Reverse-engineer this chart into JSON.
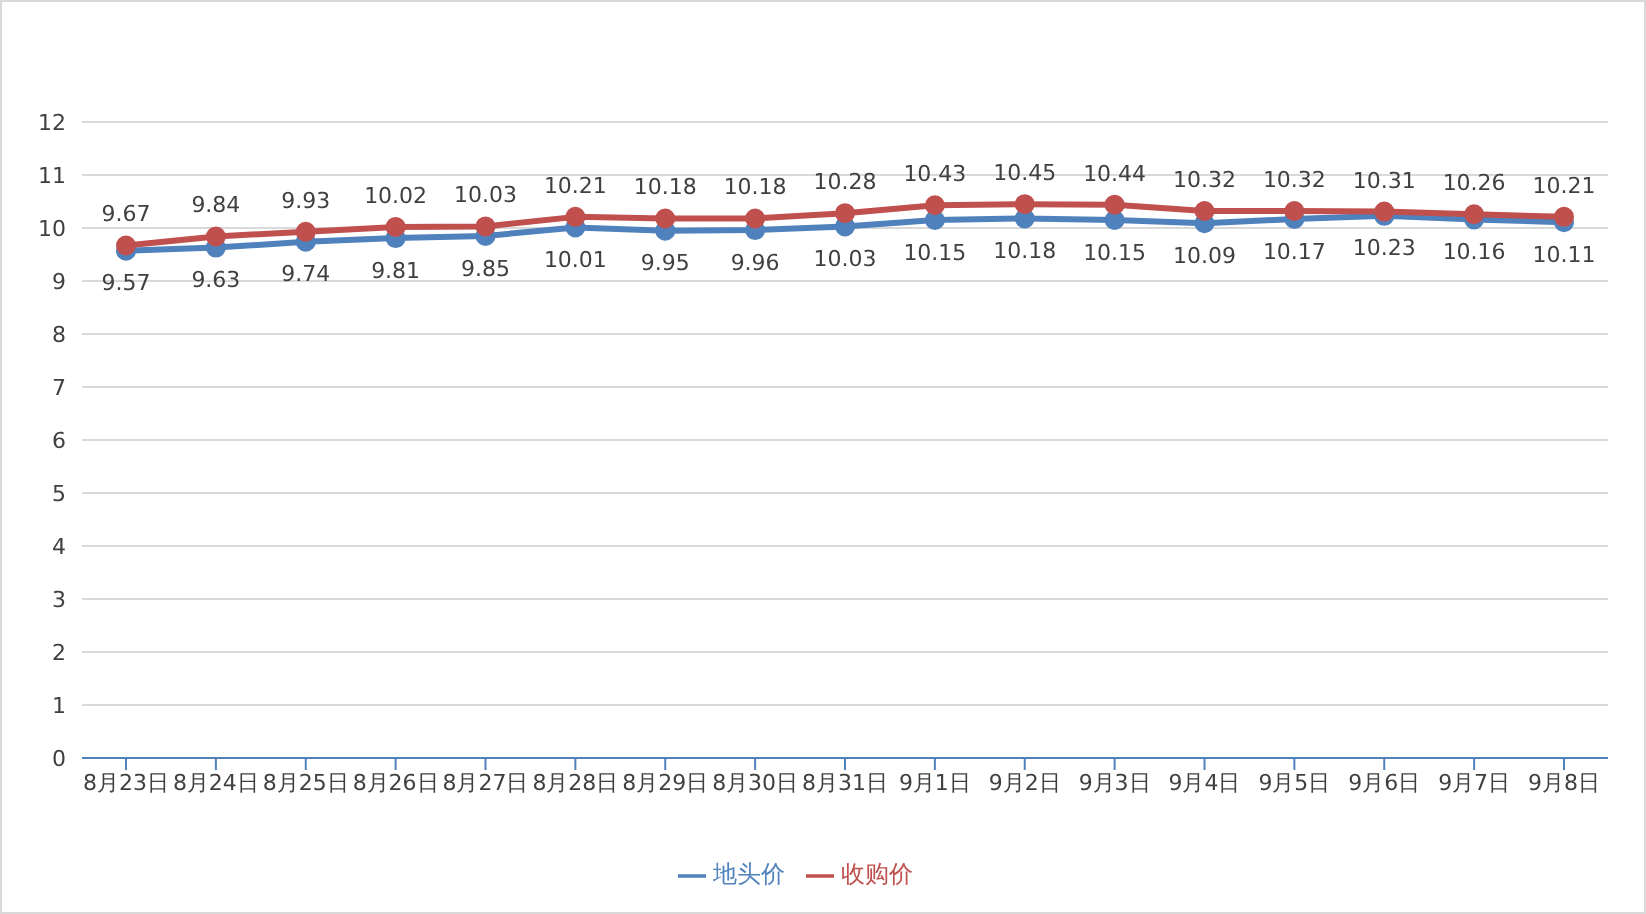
{
  "chart_data": {
    "type": "line",
    "categories": [
      "8月23日",
      "8月24日",
      "8月25日",
      "8月26日",
      "8月27日",
      "8月28日",
      "8月29日",
      "8月30日",
      "8月31日",
      "9月1日",
      "9月2日",
      "9月3日",
      "9月4日",
      "9月5日",
      "9月6日",
      "9月7日",
      "9月8日"
    ],
    "series": [
      {
        "name": "地头价",
        "color": "#4f81bd",
        "values": [
          9.57,
          9.63,
          9.74,
          9.81,
          9.85,
          10.01,
          9.95,
          9.96,
          10.03,
          10.15,
          10.18,
          10.15,
          10.09,
          10.17,
          10.23,
          10.16,
          10.11
        ]
      },
      {
        "name": "收购价",
        "color": "#c0504d",
        "values": [
          9.67,
          9.84,
          9.93,
          10.02,
          10.03,
          10.21,
          10.18,
          10.18,
          10.28,
          10.43,
          10.45,
          10.44,
          10.32,
          10.32,
          10.31,
          10.26,
          10.21
        ]
      }
    ],
    "ylim": [
      0,
      12
    ],
    "yticks": [
      0,
      1,
      2,
      3,
      4,
      5,
      6,
      7,
      8,
      9,
      10,
      11,
      12
    ],
    "grid": "y",
    "legend": "bottom",
    "marker": "circle",
    "line_style": "solid",
    "data_labels": true
  }
}
